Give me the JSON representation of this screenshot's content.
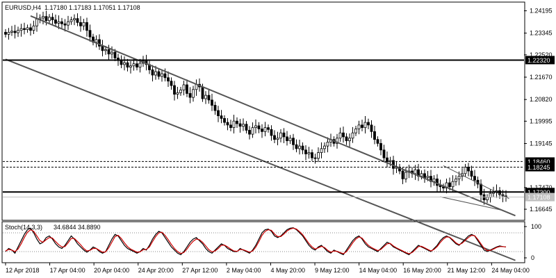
{
  "chart_data": [
    {
      "type": "candlestick",
      "header": {
        "symbol_tf": "EURUSD,H4",
        "ohlc": "1.17180 1.17183 1.17051 1.17108"
      },
      "ylim": [
        1.1625,
        1.245
      ],
      "y_ticks": [
        "1.24195",
        "1.23345",
        "1.22520",
        "1.21670",
        "1.20820",
        "1.19995",
        "1.19145",
        "1.17470",
        "1.16645"
      ],
      "x_ticks": [
        "12 Apr 2018",
        "17 Apr 04:00",
        "20 Apr 04:00",
        "24 Apr 20:00",
        "27 Apr 12:00",
        "2 May 04:00",
        "4 May 20:00",
        "9 May 12:00",
        "14 May 04:00",
        "16 May 20:00",
        "21 May 12:00",
        "24 May 04:00"
      ],
      "levels": [
        {
          "value": 1.2232,
          "label": "1.22320",
          "style": "solid",
          "color": "#000000"
        },
        {
          "value": 1.1846,
          "label": "1.18460",
          "style": "dashed",
          "color": "#000000"
        },
        {
          "value": 1.18245,
          "label": "1.18245",
          "style": "dashed",
          "color": "#000000"
        },
        {
          "value": 1.173,
          "label": "1.17300",
          "style": "solid",
          "color": "#000000"
        }
      ],
      "current_price": {
        "value": 1.17108,
        "label": "1.17108",
        "color": "#c0c0c0"
      },
      "channel_lines": [
        {
          "points": [
            [
              8,
              1.24
            ],
            [
              163,
              1.164
            ]
          ],
          "color": "#555555"
        },
        {
          "points": [
            [
              0,
              1.2235
            ],
            [
              163,
              1.147
            ]
          ],
          "color": "#555555"
        }
      ],
      "wedge_lines": [
        {
          "points": [
            [
              140,
              1.183
            ],
            [
              161,
              1.1705
            ]
          ],
          "color": "#555555"
        },
        {
          "points": [
            [
              139,
              1.1712
            ],
            [
              159,
              1.166
            ]
          ],
          "color": "#555555"
        }
      ],
      "close_prices": [
        1.233,
        1.2338,
        1.2342,
        1.2336,
        1.2345,
        1.2352,
        1.2348,
        1.2355,
        1.2345,
        1.2362,
        1.2388,
        1.2392,
        1.2398,
        1.2382,
        1.2395,
        1.2385,
        1.2372,
        1.2378,
        1.237,
        1.2365,
        1.2378,
        1.2385,
        1.239,
        1.2375,
        1.2362,
        1.2375,
        1.2345,
        1.232,
        1.23,
        1.231,
        1.2285,
        1.2268,
        1.2272,
        1.2255,
        1.2262,
        1.224,
        1.223,
        1.2215,
        1.2222,
        1.2205,
        1.221,
        1.2218,
        1.2205,
        1.222,
        1.2228,
        1.2215,
        1.2195,
        1.2175,
        1.2188,
        1.217,
        1.218,
        1.2165,
        1.2152,
        1.2135,
        1.2102,
        1.2108,
        1.2118,
        1.2138,
        1.2105,
        1.209,
        1.212,
        1.214,
        1.213,
        1.2085,
        1.2098,
        1.208,
        1.206,
        1.204,
        1.202,
        1.201,
        1.1995,
        1.1985,
        1.1975,
        1.2,
        1.199,
        1.198,
        1.1988,
        1.1965,
        1.195,
        1.1975,
        1.1982,
        1.197,
        1.196,
        1.1975,
        1.1968,
        1.1945,
        1.193,
        1.1935,
        1.1955,
        1.194,
        1.1925,
        1.1935,
        1.191,
        1.1895,
        1.1905,
        1.189,
        1.1875,
        1.188,
        1.186,
        1.1858,
        1.188,
        1.1895,
        1.1905,
        1.192,
        1.193,
        1.1915,
        1.1935,
        1.1955,
        1.194,
        1.1925,
        1.1935,
        1.1955,
        1.197,
        1.1985,
        1.1975,
        1.1995,
        1.1985,
        1.196,
        1.193,
        1.1915,
        1.189,
        1.186,
        1.1845,
        1.185,
        1.182,
        1.1825,
        1.181,
        1.178,
        1.1805,
        1.181,
        1.18,
        1.1815,
        1.179,
        1.18,
        1.1785,
        1.179,
        1.177,
        1.178,
        1.1755,
        1.175,
        1.1745,
        1.1765,
        1.175,
        1.177,
        1.178,
        1.179,
        1.18,
        1.1825,
        1.181,
        1.179,
        1.1775,
        1.176,
        1.172,
        1.17,
        1.171,
        1.1725,
        1.173,
        1.1735,
        1.172,
        1.1715,
        1.1711
      ]
    },
    {
      "type": "line",
      "header": {
        "name": "Stoch(14,3,3)",
        "values": "34.6844 34.8890"
      },
      "ylim": [
        0,
        100
      ],
      "y_ticks": [
        "100",
        "0"
      ],
      "series": [
        {
          "color": "#000000",
          "values": [
            20,
            30,
            25,
            15,
            35,
            55,
            75,
            90,
            95,
            80,
            60,
            45,
            50,
            65,
            70,
            60,
            45,
            35,
            30,
            40,
            55,
            70,
            60,
            45,
            35,
            25,
            18,
            25,
            35,
            30,
            20,
            15,
            20,
            40,
            60,
            75,
            70,
            55,
            40,
            30,
            25,
            20,
            15,
            20,
            30,
            25,
            40,
            60,
            75,
            85,
            80,
            65,
            50,
            35,
            25,
            15,
            10,
            20,
            35,
            50,
            60,
            65,
            55,
            45,
            30,
            20,
            15,
            25,
            35,
            45,
            40,
            30,
            25,
            20,
            20,
            30,
            25,
            20,
            15,
            25,
            40,
            60,
            80,
            90,
            92,
            85,
            70,
            65,
            70,
            80,
            90,
            95,
            96,
            90,
            80,
            70,
            55,
            40,
            30,
            25,
            35,
            40,
            30,
            20,
            15,
            25,
            20,
            15,
            10,
            25,
            40,
            55,
            65,
            70,
            60,
            45,
            35,
            30,
            25,
            20,
            30,
            40,
            50,
            45,
            35,
            30,
            25,
            20,
            15,
            10,
            20,
            30,
            40,
            35,
            30,
            25,
            20,
            30,
            40,
            55,
            65,
            70,
            65,
            55,
            45,
            40,
            50,
            60,
            70,
            75,
            70,
            55,
            40,
            25,
            20,
            25,
            30,
            35,
            38,
            36,
            35
          ]
        },
        {
          "color": "#cc0000",
          "values": [
            22,
            27,
            25,
            20,
            28,
            45,
            65,
            82,
            90,
            85,
            70,
            55,
            50,
            58,
            65,
            63,
            52,
            42,
            35,
            36,
            48,
            62,
            62,
            52,
            42,
            30,
            22,
            24,
            30,
            30,
            24,
            18,
            19,
            32,
            50,
            68,
            72,
            62,
            48,
            36,
            28,
            23,
            18,
            19,
            26,
            27,
            35,
            52,
            68,
            80,
            82,
            72,
            58,
            43,
            30,
            20,
            14,
            17,
            28,
            42,
            53,
            60,
            58,
            50,
            38,
            26,
            19,
            22,
            30,
            40,
            41,
            35,
            28,
            22,
            21,
            27,
            26,
            22,
            18,
            22,
            34,
            52,
            72,
            85,
            90,
            88,
            76,
            68,
            68,
            76,
            86,
            92,
            95,
            92,
            84,
            74,
            60,
            46,
            35,
            28,
            32,
            37,
            33,
            24,
            18,
            22,
            21,
            17,
            13,
            20,
            33,
            48,
            60,
            67,
            63,
            51,
            40,
            33,
            28,
            23,
            27,
            36,
            45,
            46,
            38,
            32,
            27,
            22,
            17,
            13,
            17,
            26,
            36,
            37,
            32,
            27,
            22,
            27,
            36,
            49,
            60,
            67,
            66,
            58,
            48,
            42,
            47,
            56,
            65,
            72,
            71,
            59,
            45,
            31,
            23,
            24,
            28,
            33,
            36,
            36,
            35
          ]
        }
      ]
    }
  ]
}
